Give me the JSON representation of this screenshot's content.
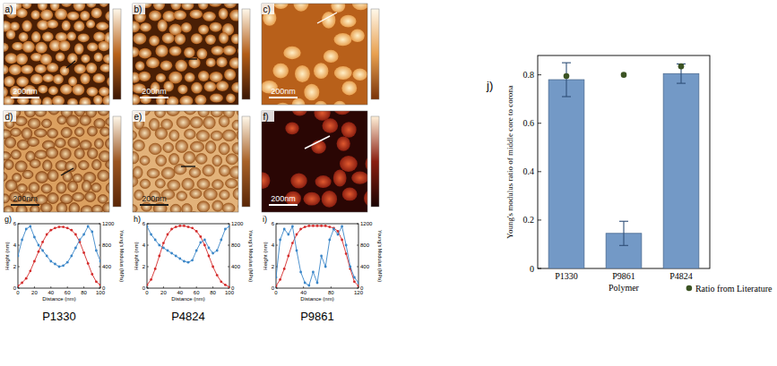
{
  "images": [
    {
      "panel": "a)",
      "scale_bar": "200nm"
    },
    {
      "panel": "b)",
      "scale_bar": "200nm"
    },
    {
      "panel": "c)",
      "scale_bar": "200nm"
    },
    {
      "panel": "d)",
      "scale_bar": "200nm"
    },
    {
      "panel": "e)",
      "scale_bar": "200nm"
    },
    {
      "panel": "f)",
      "scale_bar": "200nm"
    }
  ],
  "chart_data": [
    {
      "type": "line",
      "panel": "g)",
      "title": "P1330",
      "x_label": "Distance (nm)",
      "y_label": "Height (nm)",
      "y2_label": "Young's Modulus (MPa)",
      "x": [
        0,
        5,
        10,
        15,
        20,
        25,
        30,
        35,
        40,
        45,
        50,
        55,
        60,
        65,
        70,
        75,
        80,
        85,
        90,
        95,
        100
      ],
      "xlim": [
        0,
        100
      ],
      "xticks": [
        0,
        20,
        40,
        60,
        80,
        100
      ],
      "ylim": [
        0,
        6
      ],
      "yticks": [
        0,
        2,
        4,
        6
      ],
      "y2lim": [
        0,
        1200
      ],
      "y2ticks": [
        0,
        400,
        800,
        1200
      ],
      "series": [
        {
          "color": "#d42a2a",
          "marker": "circle",
          "values": [
            0.2,
            0.5,
            0.9,
            1.6,
            2.5,
            3.4,
            4.3,
            5.0,
            5.4,
            5.6,
            5.7,
            5.7,
            5.6,
            5.4,
            5.0,
            4.3,
            3.3,
            2.3,
            1.3,
            0.6,
            0.3
          ]
        },
        {
          "color": "#3a86c8",
          "marker": "circle",
          "axis": "y2",
          "values": [
            600,
            900,
            1100,
            1150,
            950,
            800,
            700,
            600,
            500,
            450,
            400,
            420,
            480,
            600,
            750,
            900,
            1000,
            1150,
            1050,
            700,
            500
          ]
        }
      ]
    },
    {
      "type": "line",
      "panel": "h)",
      "title": "P4824",
      "x_label": "Distance (nm)",
      "y_label": "Height (nm)",
      "y2_label": "Young's Modulus (MPa)",
      "x": [
        0,
        5,
        10,
        15,
        20,
        25,
        30,
        35,
        40,
        45,
        50,
        55,
        60,
        65,
        70,
        75,
        80,
        85,
        90,
        95,
        100
      ],
      "xlim": [
        0,
        100
      ],
      "xticks": [
        0,
        20,
        40,
        60,
        80,
        100
      ],
      "ylim": [
        0,
        6
      ],
      "yticks": [
        0,
        2,
        4,
        6
      ],
      "y2lim": [
        0,
        1200
      ],
      "y2ticks": [
        0,
        400,
        800,
        1200
      ],
      "series": [
        {
          "color": "#d42a2a",
          "marker": "circle",
          "values": [
            0.3,
            0.8,
            1.8,
            3.0,
            4.2,
            5.0,
            5.5,
            5.7,
            5.8,
            5.8,
            5.7,
            5.6,
            5.3,
            4.8,
            4.0,
            3.0,
            2.0,
            1.2,
            0.6,
            0.3,
            0.1
          ]
        },
        {
          "color": "#3a86c8",
          "marker": "circle",
          "axis": "y2",
          "values": [
            1150,
            1000,
            900,
            800,
            750,
            700,
            650,
            600,
            550,
            500,
            480,
            520,
            700,
            850,
            900,
            750,
            650,
            700,
            900,
            1100,
            1150
          ]
        }
      ]
    },
    {
      "type": "line",
      "panel": "i)",
      "title": "P9861",
      "x_label": "Distance (nm)",
      "y_label": "Height (nm)",
      "y2_label": "Young's Modulus (MPa)",
      "x": [
        0,
        6,
        12,
        18,
        24,
        30,
        36,
        42,
        48,
        54,
        60,
        66,
        72,
        78,
        84,
        90,
        96,
        102,
        108,
        114,
        120
      ],
      "xlim": [
        0,
        120
      ],
      "xticks": [
        0,
        40,
        80,
        120
      ],
      "ylim": [
        0,
        6
      ],
      "yticks": [
        0,
        2,
        4,
        6
      ],
      "y2lim": [
        0,
        1200
      ],
      "y2ticks": [
        0,
        400,
        800,
        1200
      ],
      "series": [
        {
          "color": "#d42a2a",
          "marker": "circle",
          "values": [
            0.2,
            0.8,
            1.8,
            3.0,
            4.2,
            5.0,
            5.5,
            5.7,
            5.8,
            5.8,
            5.8,
            5.8,
            5.8,
            5.7,
            5.6,
            5.3,
            4.5,
            3.2,
            1.8,
            0.6,
            0.2
          ]
        },
        {
          "color": "#3a86c8",
          "marker": "circle",
          "axis": "y2",
          "values": [
            200,
            900,
            1100,
            1000,
            1150,
            700,
            300,
            100,
            50,
            300,
            100,
            600,
            400,
            900,
            1100,
            1000,
            1150,
            800,
            400,
            200,
            100
          ]
        }
      ]
    },
    {
      "type": "bar",
      "panel": "j)",
      "categories": [
        "P1330",
        "P9861",
        "P4824"
      ],
      "x_label": "Polymer",
      "y_label": "Young's modulus ratio of middle core to corona",
      "ylim": [
        0,
        0.88
      ],
      "yticks": [
        0,
        0.2,
        0.4,
        0.6,
        0.8
      ],
      "legend": "bottom-right",
      "series": [
        {
          "type": "bar",
          "color": "#7399c6",
          "values": [
            0.78,
            0.145,
            0.805
          ],
          "errors": [
            0.07,
            0.05,
            0.04
          ]
        },
        {
          "type": "scatter",
          "name": "Ratio from Literature",
          "color": "#3b5323",
          "marker": "circle",
          "values": [
            0.795,
            0.8,
            0.835
          ]
        }
      ]
    }
  ]
}
